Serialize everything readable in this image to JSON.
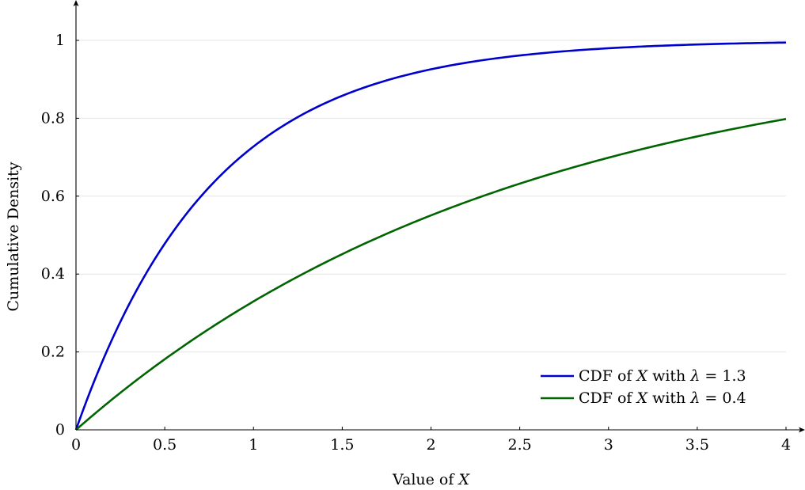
{
  "chart_data": {
    "type": "line",
    "title": "",
    "xlabel_prefix": "Value of ",
    "xlabel_var": "X",
    "ylabel": "Cumulative Density",
    "xlim": [
      0,
      4
    ],
    "ylim": [
      0,
      1.08
    ],
    "x_ticks": [
      0,
      0.5,
      1,
      1.5,
      2,
      2.5,
      3,
      3.5,
      4
    ],
    "x_tick_labels": [
      "0",
      "0.5",
      "1",
      "1.5",
      "2",
      "2.5",
      "3",
      "3.5",
      "4"
    ],
    "y_ticks": [
      0,
      0.2,
      0.4,
      0.6,
      0.8,
      1
    ],
    "y_tick_labels": [
      "0",
      "0.2",
      "0.4",
      "0.6",
      "0.8",
      "1"
    ],
    "grid": "horizontal",
    "legend_position": "bottom-right",
    "x": [
      0,
      0.25,
      0.5,
      0.75,
      1,
      1.25,
      1.5,
      1.75,
      2,
      2.25,
      2.5,
      2.75,
      3,
      3.25,
      3.5,
      3.75,
      4
    ],
    "series": [
      {
        "name": "CDF of X with λ = 1.3",
        "legend_prefix": "CDF of ",
        "legend_var": "X",
        "legend_mid": " with ",
        "legend_lambda": "λ",
        "legend_value": " = 1.3",
        "color": "#0000cc",
        "lambda": 1.3,
        "values": [
          0,
          0.277,
          0.478,
          0.623,
          0.727,
          0.803,
          0.858,
          0.897,
          0.926,
          0.946,
          0.961,
          0.972,
          0.98,
          0.985,
          0.989,
          0.992,
          0.994
        ]
      },
      {
        "name": "CDF of X with λ = 0.4",
        "legend_prefix": "CDF of ",
        "legend_var": "X",
        "legend_mid": " with ",
        "legend_lambda": "λ",
        "legend_value": " = 0.4",
        "color": "#006400",
        "lambda": 0.4,
        "values": [
          0,
          0.095,
          0.181,
          0.259,
          0.33,
          0.394,
          0.451,
          0.503,
          0.551,
          0.593,
          0.632,
          0.667,
          0.699,
          0.727,
          0.753,
          0.777,
          0.798
        ]
      }
    ]
  }
}
